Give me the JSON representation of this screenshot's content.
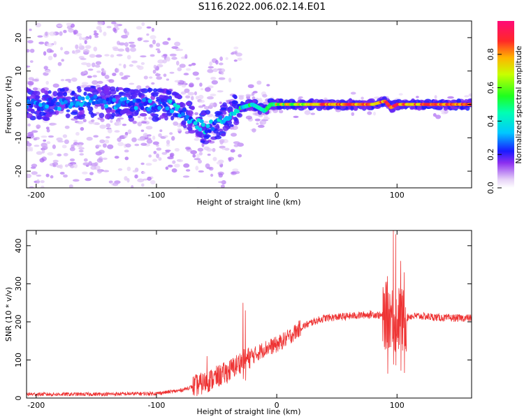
{
  "title": "S116.2022.006.02.14.E01",
  "chart_data": [
    {
      "type": "heatmap",
      "xlabel": "Height of straight line (km)",
      "ylabel": "Frequency (Hz)",
      "xlim": [
        -208,
        162
      ],
      "ylim": [
        -25,
        25
      ],
      "xticks": [
        -200,
        -100,
        0,
        100
      ],
      "yticks": [
        -20,
        -10,
        0,
        10,
        20
      ],
      "colorbar": {
        "label": "Normalized spectral amplitude",
        "range": [
          0,
          1
        ],
        "ticks": [
          0.0,
          0.2,
          0.4,
          0.6,
          0.8
        ]
      },
      "ridge": {
        "x": [
          -205,
          -180,
          -150,
          -120,
          -100,
          -90,
          -80,
          -70,
          -60,
          -50,
          -45,
          -38,
          -30,
          -20,
          -15,
          -10,
          -5,
          0,
          20,
          50,
          80,
          90,
          95,
          100,
          110,
          130,
          160
        ],
        "frequency": [
          0,
          0,
          1,
          0,
          0,
          0,
          -2,
          -5,
          -7,
          -6,
          -5,
          -2,
          -1,
          0,
          -1,
          -2,
          0,
          0,
          0,
          0,
          0,
          1,
          -1,
          0,
          0,
          0,
          0
        ]
      }
    },
    {
      "type": "line",
      "xlabel": "Height of straight line (km)",
      "ylabel": "SNR (10 * v/v)",
      "xlim": [
        -208,
        162
      ],
      "ylim": [
        0,
        440
      ],
      "xticks": [
        -200,
        -100,
        0,
        100
      ],
      "yticks": [
        0,
        100,
        200,
        300,
        400
      ],
      "color": "#ee3333",
      "envelope": {
        "x": [
          -208,
          -150,
          -100,
          -80,
          -70,
          -60,
          -50,
          -40,
          -30,
          -20,
          -10,
          0,
          10,
          20,
          30,
          40,
          60,
          80,
          90,
          95,
          98,
          100,
          105,
          110,
          120,
          140,
          162
        ],
        "snr": [
          10,
          10,
          12,
          20,
          30,
          40,
          55,
          70,
          95,
          110,
          130,
          140,
          160,
          185,
          200,
          210,
          215,
          220,
          215,
          220,
          200,
          210,
          200,
          215,
          215,
          210,
          210
        ]
      },
      "spikes": [
        {
          "x": -58,
          "snr": 110
        },
        {
          "x": -28,
          "snr": 250
        },
        {
          "x": -26,
          "snr": 230
        },
        {
          "x": 92,
          "snr": 320
        },
        {
          "x": 97,
          "snr": 440
        },
        {
          "x": 99,
          "snr": 430
        },
        {
          "x": 103,
          "snr": 360
        },
        {
          "x": 106,
          "snr": 330
        }
      ]
    }
  ]
}
